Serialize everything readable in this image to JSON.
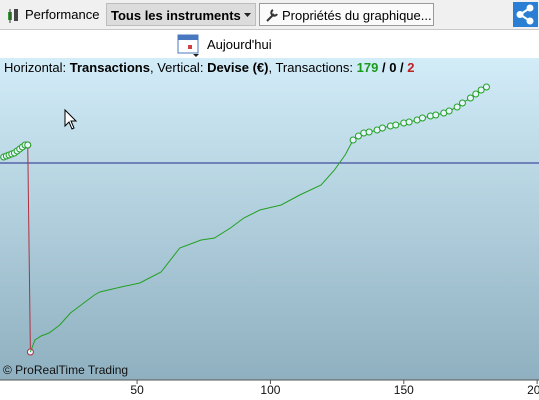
{
  "toolbar": {
    "performance": "Performance",
    "instruments": "Tous les instruments",
    "properties": "Propriétés du graphique...",
    "today": "Aujourd'hui"
  },
  "chart_data": {
    "type": "line",
    "info": {
      "horizontal_label": "Horizontal:",
      "horizontal_value": "Transactions",
      "vertical_label": ", Vertical:",
      "vertical_value": "Devise (€)",
      "count_label": ", Transactions:",
      "winning": 179,
      "separator": " / ",
      "neutral": 0,
      "losing": 2
    },
    "credit": "© ProRealTime Trading",
    "xlim": [
      -1.4,
      200.7
    ],
    "xticks": [
      50,
      100,
      150,
      200
    ],
    "ylim": [
      -217,
      105
    ],
    "hline": 0,
    "hline_color": "#1f2a8a",
    "series": [
      {
        "color": "#b03040",
        "markers": true,
        "x": [
          9,
          10
        ],
        "values": [
          18,
          -189
        ]
      },
      {
        "color": "#22a022",
        "markers": true,
        "x": [
          0,
          1,
          2,
          3,
          4,
          5,
          6,
          7,
          8,
          9
        ],
        "values": [
          6,
          7,
          8,
          9,
          10,
          12,
          14,
          16,
          18,
          18
        ]
      },
      {
        "color": "#22a022",
        "markers": false,
        "x": [
          10,
          11.7,
          14,
          17,
          21,
          25,
          29,
          34,
          36,
          44,
          51,
          59,
          66,
          74,
          79,
          85,
          90,
          96,
          104,
          111,
          119,
          124,
          128,
          131
        ],
        "values": [
          -189,
          -177,
          -173,
          -170,
          -162,
          -150,
          -142,
          -132,
          -129,
          -124,
          -120,
          -109,
          -85,
          -77,
          -75,
          -65,
          -55,
          -47,
          -42,
          -32,
          -22,
          -7,
          8,
          23
        ]
      },
      {
        "color": "#22a022",
        "markers": true,
        "x": [
          131,
          133,
          135,
          137,
          140,
          142,
          145,
          147,
          150,
          152,
          155,
          157,
          160,
          162,
          165,
          167,
          170,
          172,
          175,
          177,
          179,
          181
        ],
        "values": [
          23,
          27,
          30,
          31,
          33,
          35,
          37,
          38,
          40,
          41,
          43,
          45,
          47,
          48,
          50,
          52,
          56,
          60,
          65,
          69,
          73,
          76
        ]
      }
    ]
  }
}
